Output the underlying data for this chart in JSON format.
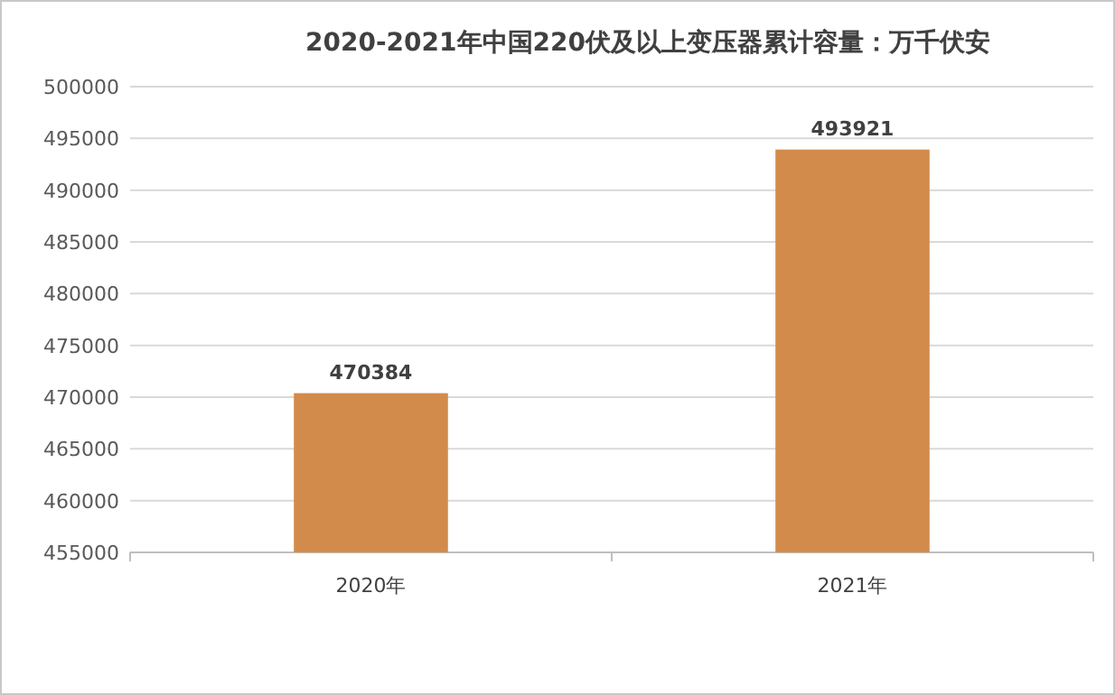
{
  "chart_data": {
    "type": "bar",
    "title": "2020-2021年中国220伏及以上变压器累计容量：万千伏安",
    "categories": [
      "2020年",
      "2021年"
    ],
    "values": [
      470384,
      493921
    ],
    "color": "#d38b4c",
    "ylim": [
      455000,
      500000
    ],
    "yticks": [
      455000,
      460000,
      465000,
      470000,
      475000,
      480000,
      485000,
      490000,
      495000,
      500000
    ],
    "grid": "y",
    "data_labels": true
  }
}
